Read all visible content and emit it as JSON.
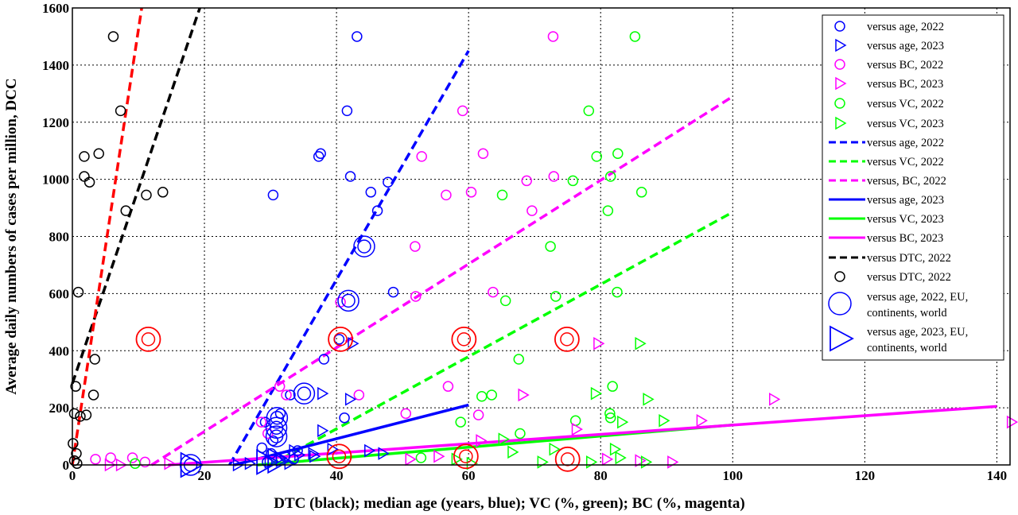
{
  "chart_data": {
    "type": "scatter",
    "xlabel": "DTC (black); median age (years, blue); VC (%, green); BC (%, magenta)",
    "ylabel": "Average daily numbers of cases per million, DCC",
    "xlim": [
      0,
      142
    ],
    "ylim": [
      0,
      1600
    ],
    "xticks": [
      "0",
      "20",
      "40",
      "60",
      "80",
      "100",
      "120",
      "140"
    ],
    "yticks": [
      "0",
      "200",
      "400",
      "600",
      "800",
      "1000",
      "1200",
      "1400",
      "1600"
    ],
    "grid": true,
    "legend_position": "top-right",
    "colors": {
      "blue": "#0000ff",
      "green": "#00ff00",
      "magenta": "#ff00ff",
      "black": "#000000",
      "red": "#ff0000"
    },
    "legend": [
      {
        "label": "versus age, 2022",
        "marker": "circle",
        "color": "#0000ff"
      },
      {
        "label": "versus age, 2023",
        "marker": "triangle",
        "color": "#0000ff"
      },
      {
        "label": "versus BC, 2022",
        "marker": "circle",
        "color": "#ff00ff"
      },
      {
        "label": "versus BC, 2023",
        "marker": "triangle",
        "color": "#ff00ff"
      },
      {
        "label": "versus VC, 2022",
        "marker": "circle",
        "color": "#00ff00"
      },
      {
        "label": "versus VC, 2023",
        "marker": "triangle",
        "color": "#00ff00"
      },
      {
        "label": "versus age, 2022",
        "marker": "dashed",
        "color": "#0000ff"
      },
      {
        "label": "versus VC, 2022",
        "marker": "dashed",
        "color": "#00ff00"
      },
      {
        "label": "versus, BC, 2022",
        "marker": "dashed",
        "color": "#ff00ff"
      },
      {
        "label": "versus age, 2023",
        "marker": "solid",
        "color": "#0000ff"
      },
      {
        "label": "versus VC, 2023",
        "marker": "solid",
        "color": "#00ff00"
      },
      {
        "label": "versus BC, 2023",
        "marker": "solid",
        "color": "#ff00ff"
      },
      {
        "label": "versus DTC, 2022",
        "marker": "dashed",
        "color": "#000000"
      },
      {
        "label": "versus DTC, 2022",
        "marker": "circle",
        "color": "#000000"
      },
      {
        "label": "versus age, 2022, EU, continents, world",
        "lines": [
          "versus age, 2022, EU,",
          "continents, world"
        ],
        "marker": "big-circle",
        "color": "#0000ff"
      },
      {
        "label": "versus age, 2023, EU, continents, world",
        "lines": [
          "versus age, 2023, EU,",
          "continents, world"
        ],
        "marker": "big-triangle",
        "color": "#0000ff"
      }
    ],
    "series": [
      {
        "marker": "circle",
        "color": "#000000",
        "points": [
          [
            6.2,
            1500
          ],
          [
            7.3,
            1240
          ],
          [
            4,
            1090
          ],
          [
            1.8,
            1080
          ],
          [
            1.8,
            1010
          ],
          [
            2.6,
            990
          ],
          [
            13.7,
            955
          ],
          [
            11.2,
            945
          ],
          [
            8.1,
            890
          ],
          [
            0.9,
            605
          ],
          [
            3.4,
            370
          ],
          [
            3.2,
            245
          ],
          [
            0.5,
            275
          ],
          [
            2.1,
            175
          ],
          [
            0.3,
            180
          ],
          [
            1.2,
            170
          ],
          [
            0.1,
            75
          ],
          [
            0.6,
            40
          ],
          [
            0.3,
            15
          ],
          [
            0.7,
            5
          ]
        ]
      },
      {
        "marker": "circle",
        "color": "#0000ff",
        "points": [
          [
            43.1,
            1500
          ],
          [
            41.6,
            1240
          ],
          [
            37.6,
            1090
          ],
          [
            37.3,
            1080
          ],
          [
            42.1,
            1010
          ],
          [
            30.4,
            945
          ],
          [
            45.2,
            955
          ],
          [
            47.8,
            990
          ],
          [
            46.2,
            890
          ],
          [
            48.6,
            605
          ],
          [
            40.4,
            440
          ],
          [
            38.1,
            370
          ],
          [
            41.2,
            165
          ],
          [
            31.5,
            180
          ],
          [
            33,
            245
          ],
          [
            29.2,
            150
          ],
          [
            28.7,
            60
          ],
          [
            30.1,
            40
          ],
          [
            32.2,
            30
          ],
          [
            33.5,
            20
          ],
          [
            29.5,
            10
          ],
          [
            34.1,
            50
          ],
          [
            30.4,
            85
          ]
        ]
      },
      {
        "marker": "circle",
        "color": "#ff00ff",
        "points": [
          [
            72.8,
            1500
          ],
          [
            59.1,
            1240
          ],
          [
            62.2,
            1090
          ],
          [
            52.9,
            1080
          ],
          [
            72.9,
            1010
          ],
          [
            68.8,
            995
          ],
          [
            60.4,
            955
          ],
          [
            56.6,
            945
          ],
          [
            69.6,
            890
          ],
          [
            51.9,
            765
          ],
          [
            63.7,
            605
          ],
          [
            52,
            590
          ],
          [
            40.6,
            570
          ],
          [
            56.9,
            275
          ],
          [
            43.4,
            245
          ],
          [
            31.4,
            275
          ],
          [
            32.4,
            245
          ],
          [
            61.5,
            175
          ],
          [
            50.5,
            180
          ],
          [
            28.6,
            150
          ],
          [
            29.6,
            110
          ],
          [
            3.5,
            20
          ],
          [
            5.8,
            25
          ],
          [
            9.1,
            25
          ],
          [
            11,
            10
          ]
        ]
      },
      {
        "marker": "circle",
        "color": "#00ff00",
        "points": [
          [
            85.2,
            1500
          ],
          [
            78.2,
            1240
          ],
          [
            79.4,
            1080
          ],
          [
            82.6,
            1090
          ],
          [
            81.5,
            1010
          ],
          [
            75.8,
            995
          ],
          [
            86.2,
            955
          ],
          [
            65.1,
            945
          ],
          [
            81.1,
            890
          ],
          [
            72.4,
            765
          ],
          [
            82.5,
            605
          ],
          [
            73.2,
            590
          ],
          [
            65.6,
            575
          ],
          [
            67.6,
            370
          ],
          [
            63.5,
            245
          ],
          [
            62,
            240
          ],
          [
            81.8,
            275
          ],
          [
            81.4,
            180
          ],
          [
            81.5,
            165
          ],
          [
            76.2,
            155
          ],
          [
            67.8,
            110
          ],
          [
            58.8,
            150
          ],
          [
            52.8,
            25
          ],
          [
            9.5,
            5
          ]
        ]
      },
      {
        "marker": "triangle",
        "color": "#0000ff",
        "points": [
          [
            42.4,
            425
          ],
          [
            42,
            230
          ],
          [
            37.8,
            250
          ],
          [
            37.8,
            120
          ],
          [
            33.5,
            50
          ],
          [
            36.6,
            30
          ],
          [
            39.3,
            55
          ],
          [
            44.9,
            50
          ],
          [
            47,
            40
          ],
          [
            31.5,
            25
          ],
          [
            29.8,
            10
          ],
          [
            32.8,
            5
          ],
          [
            25,
            0
          ],
          [
            26.8,
            5
          ],
          [
            31.5,
            15
          ],
          [
            34.3,
            35
          ],
          [
            36.4,
            40
          ]
        ]
      },
      {
        "marker": "triangle",
        "color": "#ff00ff",
        "points": [
          [
            79.6,
            425
          ],
          [
            106.2,
            230
          ],
          [
            68.2,
            245
          ],
          [
            142.2,
            150
          ],
          [
            95.2,
            155
          ],
          [
            76.3,
            125
          ],
          [
            90.8,
            10
          ],
          [
            85.9,
            15
          ],
          [
            80.9,
            20
          ],
          [
            61.8,
            85
          ],
          [
            55.4,
            30
          ],
          [
            51.1,
            20
          ],
          [
            14.6,
            5
          ],
          [
            5.6,
            0
          ],
          [
            7.3,
            0
          ]
        ]
      },
      {
        "marker": "triangle",
        "color": "#00ff00",
        "points": [
          [
            85.9,
            425
          ],
          [
            87.1,
            230
          ],
          [
            79.2,
            250
          ],
          [
            89.5,
            155
          ],
          [
            83.2,
            150
          ],
          [
            72.9,
            55
          ],
          [
            78.5,
            10
          ],
          [
            86.8,
            10
          ],
          [
            82.9,
            25
          ],
          [
            65.2,
            90
          ],
          [
            58.1,
            20
          ],
          [
            60.4,
            5
          ],
          [
            71.1,
            10
          ],
          [
            66.6,
            45
          ],
          [
            82.1,
            55
          ]
        ]
      },
      {
        "marker": "big-circle",
        "color": "#0000ff",
        "points": [
          [
            44.2,
            765
          ],
          [
            41.8,
            575
          ],
          [
            35.1,
            250
          ],
          [
            31,
            165
          ],
          [
            30.9,
            130
          ],
          [
            30.9,
            100
          ],
          [
            17.9,
            0
          ]
        ]
      },
      {
        "marker": "big-triangle",
        "color": "#0000ff",
        "points": [
          [
            17.9,
            0
          ],
          [
            29.4,
            10
          ],
          [
            31.1,
            15
          ]
        ]
      },
      {
        "marker": "ring",
        "color": "#ff0000",
        "points": [
          [
            11.5,
            440
          ],
          [
            40.6,
            440
          ],
          [
            59.3,
            440
          ],
          [
            74.9,
            440
          ],
          [
            40.4,
            30
          ],
          [
            59.6,
            30
          ],
          [
            75,
            20
          ]
        ]
      }
    ],
    "fit_lines": [
      {
        "name": "versus DTC, 2022",
        "style": "dashed",
        "color": "#000000",
        "x": [
          0,
          19.3
        ],
        "y": [
          285,
          1600
        ]
      },
      {
        "name": "versus age, 2022",
        "style": "dashed",
        "color": "#0000ff",
        "x": [
          23.8,
          60
        ],
        "y": [
          0,
          1450
        ]
      },
      {
        "name": "versus, BC, 2022",
        "style": "dashed",
        "color": "#ff00ff",
        "x": [
          12,
          100
        ],
        "y": [
          0,
          1290
        ]
      },
      {
        "name": "versus VC, 2022",
        "style": "dashed",
        "color": "#00ff00",
        "x": [
          30,
          100
        ],
        "y": [
          0,
          885
        ]
      },
      {
        "name": "versus age, 2023",
        "style": "solid",
        "color": "#0000ff",
        "x": [
          24.5,
          60
        ],
        "y": [
          0,
          210
        ]
      },
      {
        "name": "versus VC, 2023",
        "style": "solid",
        "color": "#00ff00",
        "x": [
          28,
          100
        ],
        "y": [
          0,
          140
        ]
      },
      {
        "name": "versus BC, 2023",
        "style": "solid",
        "color": "#ff00ff",
        "x": [
          14.5,
          140
        ],
        "y": [
          0,
          205
        ]
      },
      {
        "name": "red dashed",
        "style": "dashed",
        "color": "#ff0000",
        "x": [
          0,
          10.5
        ],
        "y": [
          0,
          1600
        ]
      }
    ]
  }
}
